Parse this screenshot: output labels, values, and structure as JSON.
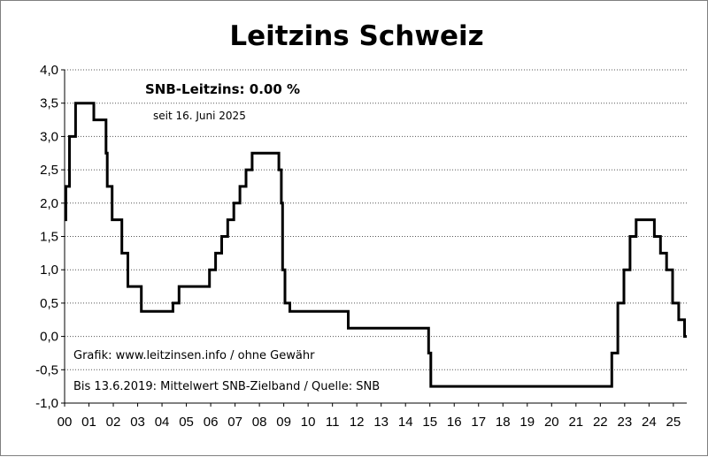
{
  "chart_data": {
    "type": "line",
    "title": "Leitzins Schweiz",
    "xlabel": "",
    "ylabel": "",
    "ylim": [
      -1.0,
      4.0
    ],
    "xlim": [
      2000.0,
      2025.55
    ],
    "y_ticks": [
      "4,0",
      "3,5",
      "3,0",
      "2,5",
      "2,0",
      "1,5",
      "1,0",
      "0,5",
      "0,0",
      "-0,5",
      "-1,0"
    ],
    "x_ticks": [
      "00",
      "01",
      "02",
      "03",
      "04",
      "05",
      "06",
      "07",
      "08",
      "09",
      "10",
      "11",
      "12",
      "13",
      "14",
      "15",
      "16",
      "17",
      "18",
      "19",
      "20",
      "21",
      "22",
      "23",
      "24",
      "25"
    ],
    "grid": "horizontal dotted",
    "annotations": {
      "current_rate": "SNB-Leitzins: 0.00 %",
      "since": "seit 16. Juni 2025",
      "source": "Grafik: www.leitzinsen.info / ohne Gewähr",
      "note": "Bis 13.6.2019: Mittelwert SNB-Zielband / Quelle: SNB"
    },
    "series": [
      {
        "color": "#000000",
        "style": "step",
        "points": [
          [
            2000.0,
            1.75
          ],
          [
            2000.05,
            2.25
          ],
          [
            2000.2,
            3.0
          ],
          [
            2000.45,
            3.5
          ],
          [
            2001.2,
            3.25
          ],
          [
            2001.7,
            2.75
          ],
          [
            2001.75,
            2.25
          ],
          [
            2001.95,
            1.75
          ],
          [
            2002.35,
            1.25
          ],
          [
            2002.6,
            0.75
          ],
          [
            2003.15,
            0.375
          ],
          [
            2004.45,
            0.5
          ],
          [
            2004.7,
            0.75
          ],
          [
            2005.95,
            1.0
          ],
          [
            2006.2,
            1.25
          ],
          [
            2006.45,
            1.5
          ],
          [
            2006.7,
            1.75
          ],
          [
            2006.95,
            2.0
          ],
          [
            2007.2,
            2.25
          ],
          [
            2007.45,
            2.5
          ],
          [
            2007.7,
            2.75
          ],
          [
            2008.8,
            2.5
          ],
          [
            2008.9,
            2.0
          ],
          [
            2008.95,
            1.0
          ],
          [
            2009.05,
            0.5
          ],
          [
            2009.25,
            0.375
          ],
          [
            2011.65,
            0.125
          ],
          [
            2014.95,
            -0.25
          ],
          [
            2015.04,
            -0.75
          ],
          [
            2022.47,
            -0.25
          ],
          [
            2022.72,
            0.5
          ],
          [
            2022.97,
            1.0
          ],
          [
            2023.22,
            1.5
          ],
          [
            2023.47,
            1.75
          ],
          [
            2024.22,
            1.5
          ],
          [
            2024.47,
            1.25
          ],
          [
            2024.72,
            1.0
          ],
          [
            2024.97,
            0.5
          ],
          [
            2025.22,
            0.25
          ],
          [
            2025.46,
            0.0
          ]
        ],
        "end_x": 2025.55
      }
    ]
  }
}
